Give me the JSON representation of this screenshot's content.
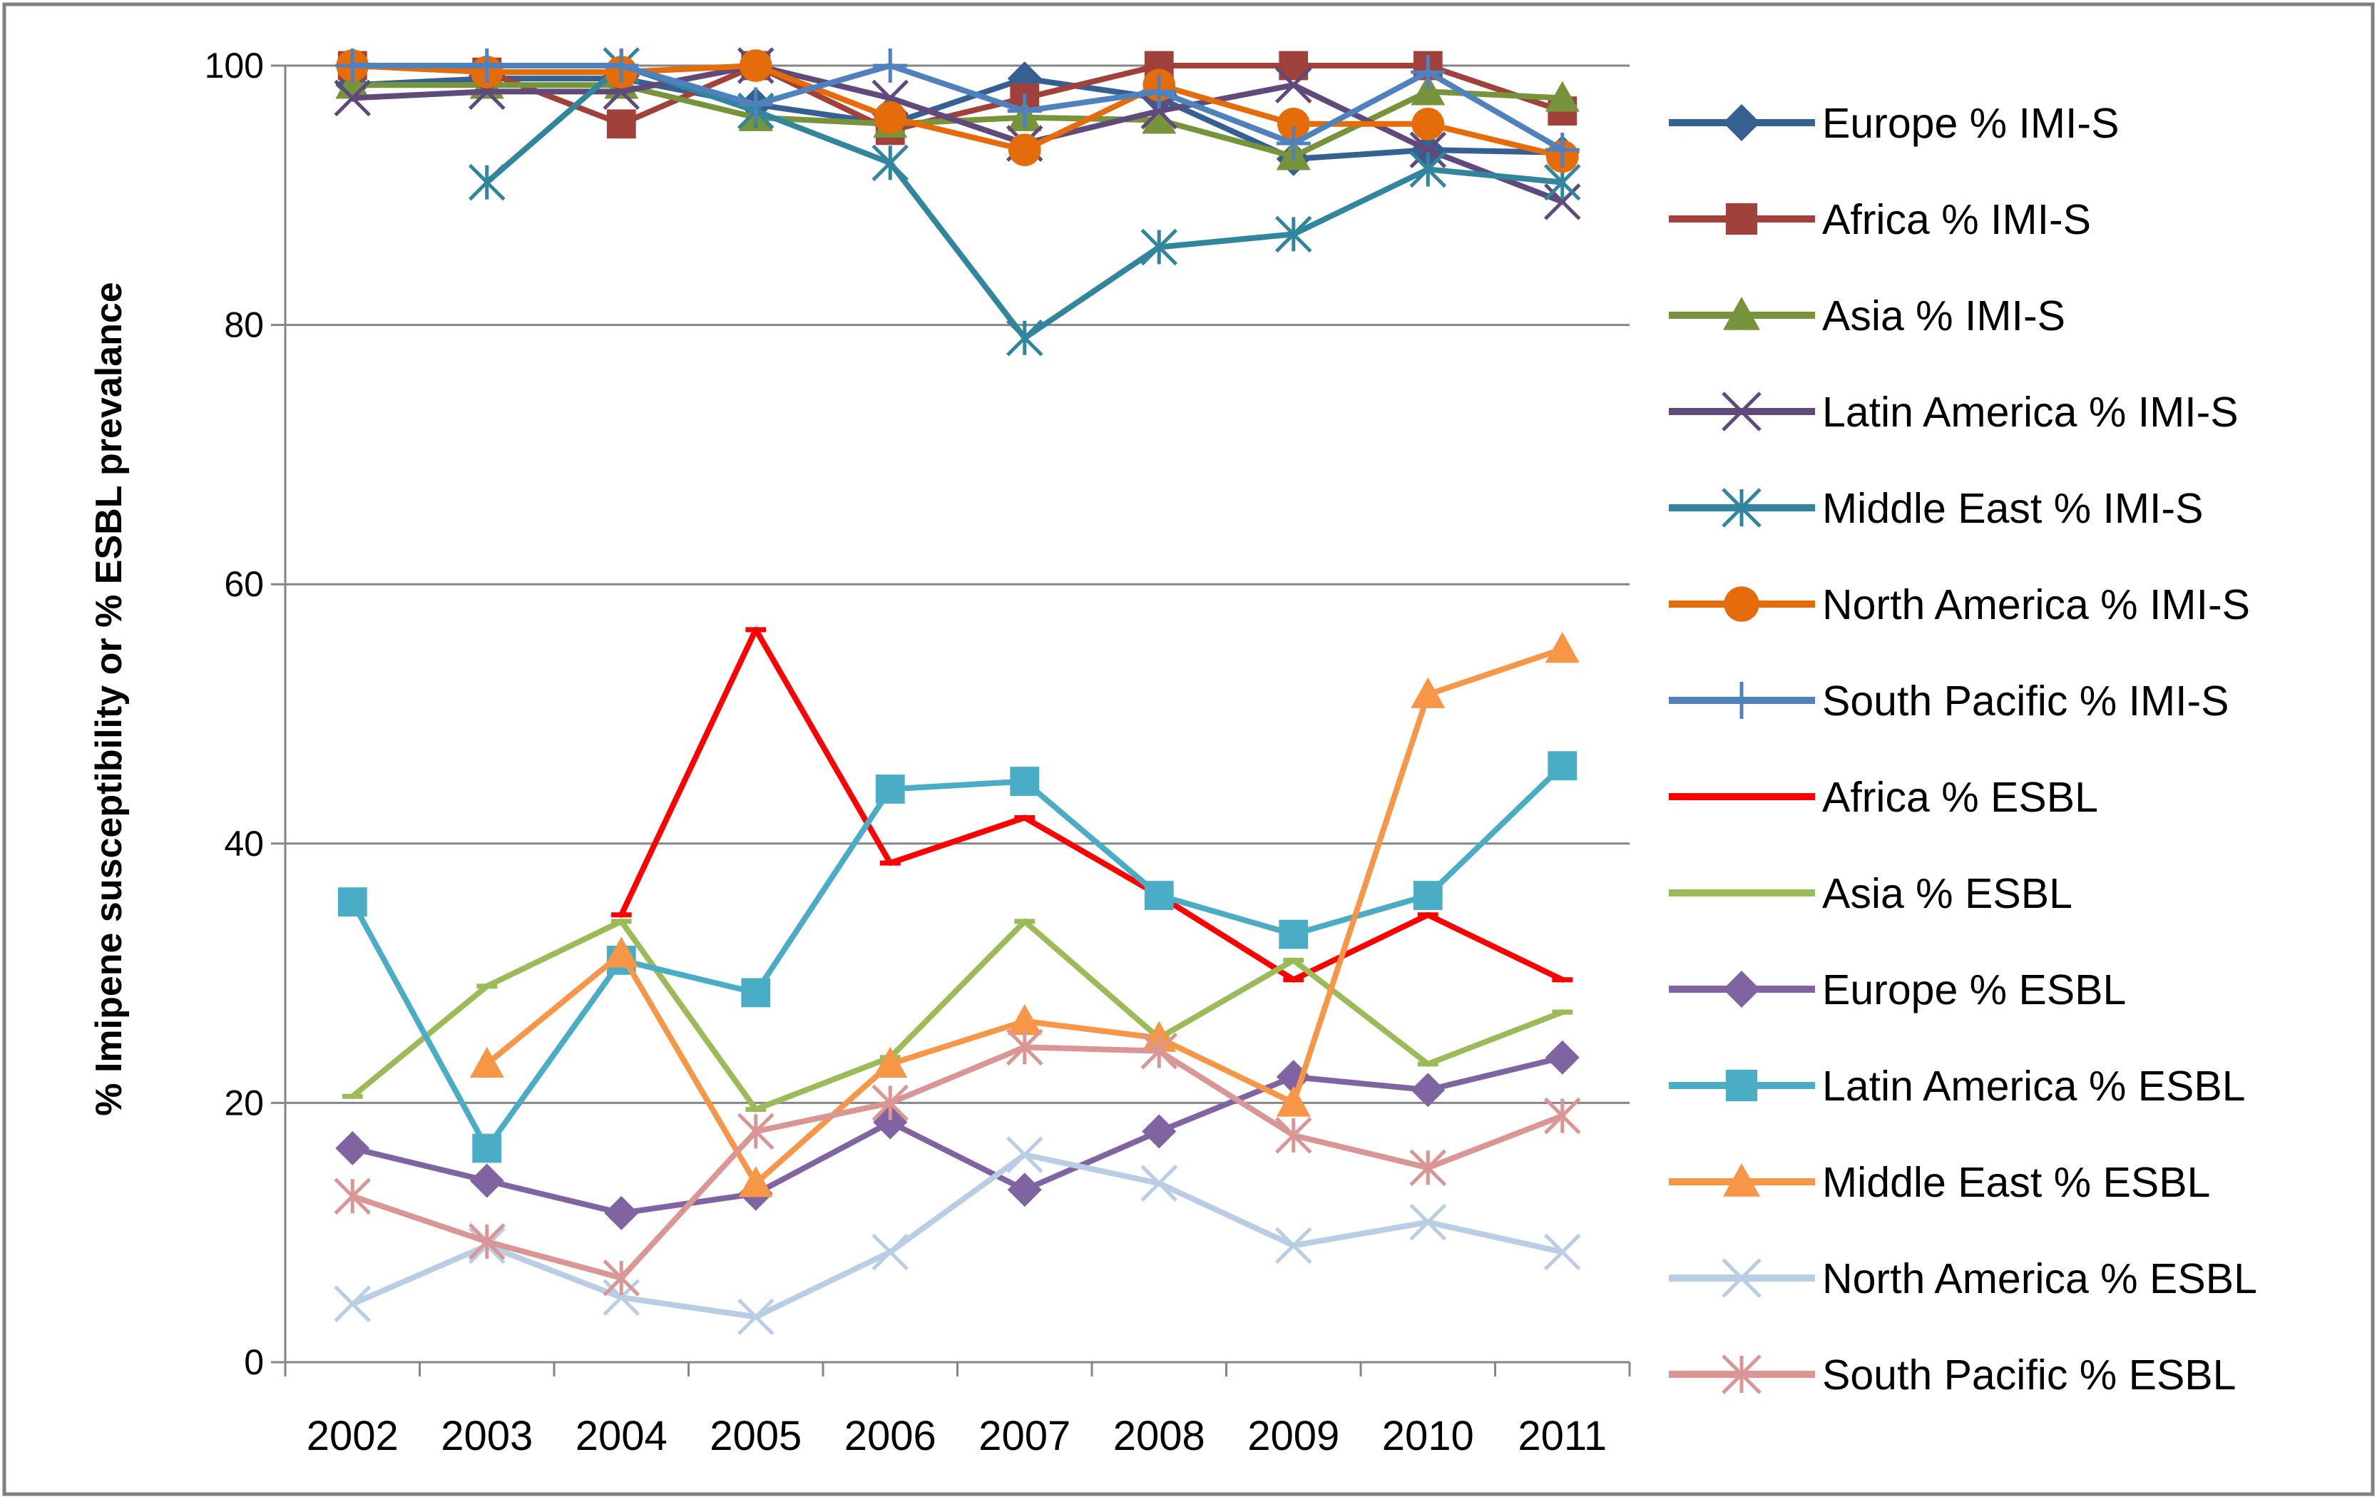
{
  "chart_data": {
    "type": "line",
    "title": "",
    "xlabel": "",
    "ylabel": "% Imipene susceptibility or % ESBL prevalance",
    "ylim": [
      0,
      100
    ],
    "yticks": [
      0,
      20,
      40,
      60,
      80,
      100
    ],
    "grid": true,
    "legend_position": "right",
    "categories": [
      "2002",
      "2003",
      "2004",
      "2005",
      "2006",
      "2007",
      "2008",
      "2009",
      "2010",
      "2011"
    ],
    "series": [
      {
        "name": "Europe % IMI-S",
        "color": "#376092",
        "marker": "diamond",
        "values": [
          98.5,
          99,
          99,
          97,
          95.5,
          99,
          97.5,
          92.8,
          93.5,
          93.3
        ]
      },
      {
        "name": "Africa % IMI-S",
        "color": "#A0413C",
        "marker": "square",
        "values": [
          100,
          99.5,
          95.5,
          100,
          95,
          97.5,
          100,
          100,
          100,
          96.5
        ]
      },
      {
        "name": "Asia % IMI-S",
        "color": "#77933C",
        "marker": "triangle",
        "values": [
          98.5,
          98.5,
          98.5,
          96,
          95.5,
          96,
          95.8,
          93,
          98,
          97.5
        ]
      },
      {
        "name": "Latin America % IMI-S",
        "color": "#604A7B",
        "marker": "x",
        "values": [
          97.5,
          98,
          98,
          100,
          97.5,
          94,
          96.5,
          98.5,
          93.5,
          89.5
        ]
      },
      {
        "name": "Middle East % IMI-S",
        "color": "#31859C",
        "marker": "asterisk",
        "values": [
          null,
          91,
          100,
          96.5,
          92.5,
          79,
          86,
          87,
          92,
          91
        ]
      },
      {
        "name": "North America % IMI-S",
        "color": "#E46C0A",
        "marker": "circle",
        "values": [
          100,
          99.5,
          99.5,
          100,
          96,
          93.5,
          98.5,
          95.5,
          95.5,
          93
        ]
      },
      {
        "name": "South Pacific % IMI-S",
        "color": "#4F81BD",
        "marker": "plus",
        "values": [
          100,
          100,
          100,
          97,
          100,
          96.5,
          98,
          94,
          99.5,
          93.5
        ]
      },
      {
        "name": "Africa % ESBL",
        "color": "#FF0000",
        "marker": "dash",
        "values": [
          null,
          null,
          34.5,
          56.5,
          38.5,
          42,
          36,
          29.5,
          34.5,
          29.5
        ]
      },
      {
        "name": "Asia % ESBL",
        "color": "#9BBB59",
        "marker": "dash",
        "values": [
          20.5,
          29,
          34,
          19.5,
          23.5,
          34,
          25,
          31,
          23,
          27
        ]
      },
      {
        "name": "Europe % ESBL",
        "color": "#8064A2",
        "marker": "diamond",
        "values": [
          16.5,
          14,
          11.5,
          13,
          18.5,
          13.3,
          17.8,
          22,
          21,
          23.5
        ]
      },
      {
        "name": "Latin America % ESBL",
        "color": "#4BACC6",
        "marker": "square",
        "values": [
          35.5,
          16.5,
          31,
          28.5,
          44.2,
          44.8,
          36,
          33,
          36,
          46
        ]
      },
      {
        "name": "Middle East % ESBL",
        "color": "#F79646",
        "marker": "triangle",
        "values": [
          null,
          23,
          31.5,
          13.8,
          23,
          26.3,
          25,
          20,
          51.5,
          55
        ]
      },
      {
        "name": "North America % ESBL",
        "color": "#B9CDE5",
        "marker": "x",
        "values": [
          4.5,
          9,
          5,
          3.5,
          8.5,
          16,
          13.8,
          9,
          10.8,
          8.5
        ]
      },
      {
        "name": "South Pacific % ESBL",
        "color": "#D99694",
        "marker": "asterisk",
        "values": [
          12.8,
          9.3,
          6.5,
          17.8,
          20,
          24.3,
          24,
          17.5,
          15,
          19
        ]
      }
    ]
  }
}
